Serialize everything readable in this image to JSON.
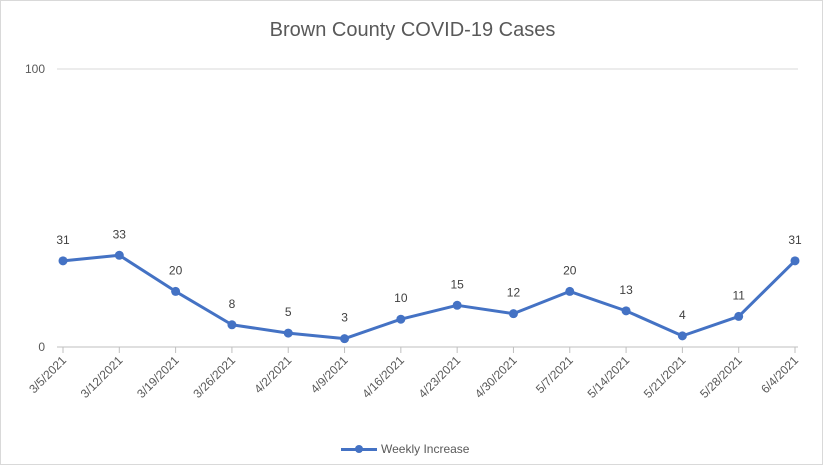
{
  "chart_data": {
    "type": "line",
    "title": "Brown County COVID-19 Cases",
    "categories": [
      "3/5/2021",
      "3/12/2021",
      "3/19/2021",
      "3/26/2021",
      "4/2/2021",
      "4/9/2021",
      "4/16/2021",
      "4/23/2021",
      "4/30/2021",
      "5/7/2021",
      "5/14/2021",
      "5/21/2021",
      "5/28/2021",
      "6/4/2021"
    ],
    "series": [
      {
        "name": "Weekly Increase",
        "values": [
          31,
          33,
          20,
          8,
          5,
          3,
          10,
          15,
          12,
          20,
          13,
          4,
          11,
          31
        ],
        "color": "#4472c4"
      }
    ],
    "yticks": [
      0,
      100
    ],
    "ylim": [
      0,
      100
    ],
    "grid": true,
    "legend_position": "bottom",
    "data_labels": true
  }
}
